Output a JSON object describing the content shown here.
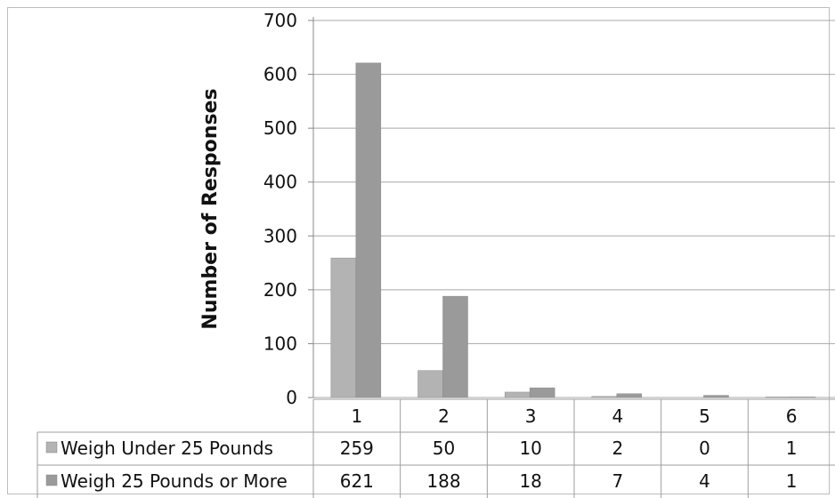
{
  "chart_data": {
    "type": "bar",
    "title": "",
    "xlabel": "",
    "ylabel": "Number of Responses",
    "ylim": [
      0,
      700
    ],
    "yticks": [
      0,
      100,
      200,
      300,
      400,
      500,
      600,
      700
    ],
    "categories": [
      "1",
      "2",
      "3",
      "4",
      "5",
      "6"
    ],
    "grid": true,
    "legend": "data-table",
    "series": [
      {
        "name": "Weigh Under 25 Pounds",
        "values": [
          259,
          50,
          10,
          2,
          0,
          1
        ],
        "color": "#b3b3b3"
      },
      {
        "name": "Weigh 25 Pounds or More",
        "values": [
          621,
          188,
          18,
          7,
          4,
          1
        ],
        "color": "#9a9a9a"
      }
    ]
  }
}
